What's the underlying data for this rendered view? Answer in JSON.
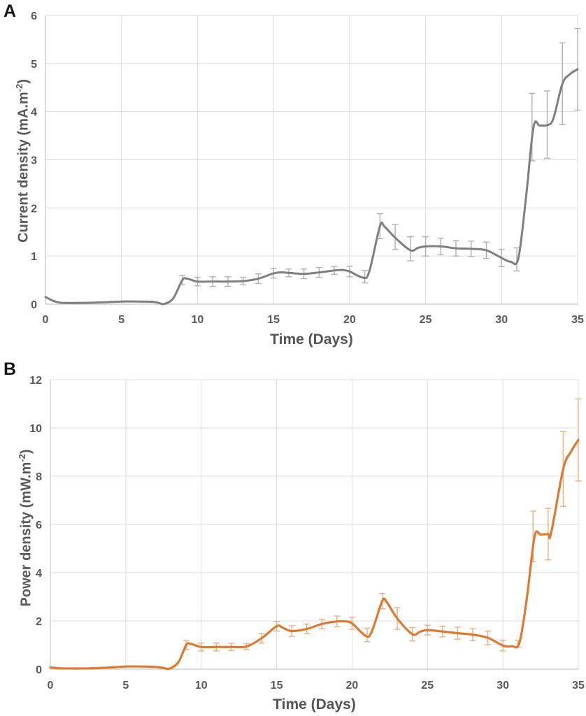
{
  "figure": {
    "background": "#ffffff",
    "text_color": "#595959",
    "panel_label_color": "#161616",
    "grid_color": "#dcdcdc",
    "axis_color": "#c6c6c6"
  },
  "chart_data": [
    {
      "type": "line",
      "panel": "A",
      "xlabel": "Time (Days)",
      "ylabel": "Current density (mA.m⁻²)",
      "ylabel_main": "Current density (mA.m",
      "ylabel_sup": "-2",
      "ylabel_close": ")",
      "xlim": [
        0,
        35
      ],
      "ylim": [
        0,
        6
      ],
      "xticks": [
        0,
        5,
        10,
        15,
        20,
        25,
        30,
        35
      ],
      "yticks": [
        0,
        1,
        2,
        3,
        4,
        5,
        6
      ],
      "grid": true,
      "legend": "none",
      "line_color": "#7f7f7f",
      "error_color": "#b0b0b0",
      "points": [
        [
          0,
          0.15
        ],
        [
          0.5,
          0.07
        ],
        [
          1,
          0.03
        ],
        [
          1.5,
          0.025
        ],
        [
          2,
          0.025
        ],
        [
          3,
          0.03
        ],
        [
          4,
          0.04
        ],
        [
          5,
          0.055
        ],
        [
          6,
          0.055
        ],
        [
          7,
          0.05
        ],
        [
          7.4,
          0.03
        ],
        [
          7.8,
          0.005
        ],
        [
          8.4,
          0.12
        ],
        [
          9,
          0.5
        ],
        [
          9.3,
          0.53
        ],
        [
          10,
          0.47
        ],
        [
          11,
          0.47
        ],
        [
          12,
          0.47
        ],
        [
          13,
          0.48
        ],
        [
          14,
          0.53
        ],
        [
          15,
          0.64
        ],
        [
          15.5,
          0.66
        ],
        [
          16,
          0.65
        ],
        [
          17,
          0.63
        ],
        [
          18,
          0.66
        ],
        [
          19,
          0.7
        ],
        [
          19.5,
          0.71
        ],
        [
          20,
          0.68
        ],
        [
          20.9,
          0.55
        ],
        [
          21.3,
          0.68
        ],
        [
          22,
          1.62
        ],
        [
          22.3,
          1.61
        ],
        [
          23,
          1.38
        ],
        [
          24,
          1.12
        ],
        [
          24.5,
          1.17
        ],
        [
          25,
          1.2
        ],
        [
          26,
          1.2
        ],
        [
          27,
          1.16
        ],
        [
          28,
          1.15
        ],
        [
          29,
          1.12
        ],
        [
          30,
          0.96
        ],
        [
          30.6,
          0.88
        ],
        [
          31.1,
          0.95
        ],
        [
          31.6,
          2.2
        ],
        [
          32.1,
          3.68
        ],
        [
          32.5,
          3.71
        ],
        [
          33,
          3.72
        ],
        [
          33.4,
          3.85
        ],
        [
          34,
          4.58
        ],
        [
          34.5,
          4.78
        ],
        [
          35,
          4.88
        ]
      ],
      "error_bars": [
        [
          9,
          0.5,
          0.1
        ],
        [
          10,
          0.47,
          0.09
        ],
        [
          11,
          0.47,
          0.1
        ],
        [
          12,
          0.47,
          0.1
        ],
        [
          13,
          0.48,
          0.08
        ],
        [
          14,
          0.53,
          0.1
        ],
        [
          15,
          0.64,
          0.1
        ],
        [
          16,
          0.65,
          0.08
        ],
        [
          17,
          0.63,
          0.1
        ],
        [
          18,
          0.66,
          0.1
        ],
        [
          19,
          0.7,
          0.08
        ],
        [
          20,
          0.68,
          0.11
        ],
        [
          21,
          0.57,
          0.13
        ],
        [
          22,
          1.62,
          0.26
        ],
        [
          23,
          1.4,
          0.26
        ],
        [
          24,
          1.15,
          0.25
        ],
        [
          25,
          1.2,
          0.2
        ],
        [
          26,
          1.2,
          0.17
        ],
        [
          27,
          1.16,
          0.16
        ],
        [
          28,
          1.15,
          0.16
        ],
        [
          29,
          1.12,
          0.17
        ],
        [
          30,
          0.96,
          0.18
        ],
        [
          31,
          0.93,
          0.24
        ],
        [
          32,
          3.68,
          0.7
        ],
        [
          33,
          3.73,
          0.7
        ],
        [
          34,
          4.58,
          0.85
        ],
        [
          35,
          4.88,
          0.85
        ]
      ]
    },
    {
      "type": "line",
      "panel": "B",
      "xlabel": "Time (Days)",
      "ylabel": "Power density (mW.m⁻²)",
      "ylabel_main": "Power density (mW.m",
      "ylabel_sup": "-2",
      "ylabel_close": ")",
      "xlim": [
        0,
        35
      ],
      "ylim": [
        0,
        12
      ],
      "xticks": [
        0,
        5,
        10,
        15,
        20,
        25,
        30,
        35
      ],
      "yticks": [
        0,
        2,
        4,
        6,
        8,
        10,
        12
      ],
      "grid": true,
      "legend": "none",
      "line_color": "#dd7a31",
      "error_color": "#f0ad7c",
      "points": [
        [
          0,
          0.07
        ],
        [
          0.5,
          0.04
        ],
        [
          1,
          0.03
        ],
        [
          2,
          0.03
        ],
        [
          3,
          0.04
        ],
        [
          4,
          0.07
        ],
        [
          5,
          0.11
        ],
        [
          6,
          0.11
        ],
        [
          7,
          0.09
        ],
        [
          7.5,
          0.05
        ],
        [
          7.9,
          0.02
        ],
        [
          8.5,
          0.3
        ],
        [
          9,
          1.0
        ],
        [
          9.3,
          1.05
        ],
        [
          10,
          0.92
        ],
        [
          11,
          0.92
        ],
        [
          12,
          0.92
        ],
        [
          13,
          0.94
        ],
        [
          14,
          1.28
        ],
        [
          15,
          1.78
        ],
        [
          15.4,
          1.72
        ],
        [
          16,
          1.58
        ],
        [
          17,
          1.67
        ],
        [
          18,
          1.87
        ],
        [
          19,
          1.98
        ],
        [
          19.5,
          1.98
        ],
        [
          20,
          1.9
        ],
        [
          20.9,
          1.38
        ],
        [
          21.3,
          1.55
        ],
        [
          22,
          2.82
        ],
        [
          22.3,
          2.78
        ],
        [
          23,
          2.1
        ],
        [
          24,
          1.45
        ],
        [
          24.5,
          1.55
        ],
        [
          25,
          1.62
        ],
        [
          26,
          1.56
        ],
        [
          27,
          1.49
        ],
        [
          28,
          1.43
        ],
        [
          29,
          1.3
        ],
        [
          30,
          0.98
        ],
        [
          30.6,
          0.95
        ],
        [
          31.1,
          1.1
        ],
        [
          31.6,
          3.0
        ],
        [
          32.1,
          5.5
        ],
        [
          32.5,
          5.58
        ],
        [
          33,
          5.6
        ],
        [
          33.2,
          5.65
        ],
        [
          34,
          8.3
        ],
        [
          34.5,
          9.0
        ],
        [
          35,
          9.5
        ]
      ],
      "error_bars": [
        [
          9,
          1.0,
          0.18
        ],
        [
          10,
          0.92,
          0.16
        ],
        [
          11,
          0.92,
          0.16
        ],
        [
          12,
          0.92,
          0.15
        ],
        [
          13,
          0.94,
          0.12
        ],
        [
          14,
          1.28,
          0.2
        ],
        [
          15,
          1.78,
          0.2
        ],
        [
          16,
          1.58,
          0.22
        ],
        [
          17,
          1.67,
          0.2
        ],
        [
          18,
          1.87,
          0.2
        ],
        [
          19,
          1.98,
          0.22
        ],
        [
          20,
          1.9,
          0.25
        ],
        [
          21,
          1.42,
          0.28
        ],
        [
          22,
          2.82,
          0.32
        ],
        [
          23,
          2.1,
          0.45
        ],
        [
          24,
          1.45,
          0.28
        ],
        [
          25,
          1.62,
          0.2
        ],
        [
          26,
          1.56,
          0.22
        ],
        [
          27,
          1.49,
          0.25
        ],
        [
          28,
          1.43,
          0.25
        ],
        [
          29,
          1.3,
          0.28
        ],
        [
          30,
          0.98,
          0.22
        ],
        [
          31,
          1.05,
          0.15
        ],
        [
          32,
          5.5,
          1.05
        ],
        [
          33,
          5.6,
          1.07
        ],
        [
          34,
          8.3,
          1.55
        ],
        [
          35,
          9.5,
          1.7
        ]
      ]
    }
  ]
}
